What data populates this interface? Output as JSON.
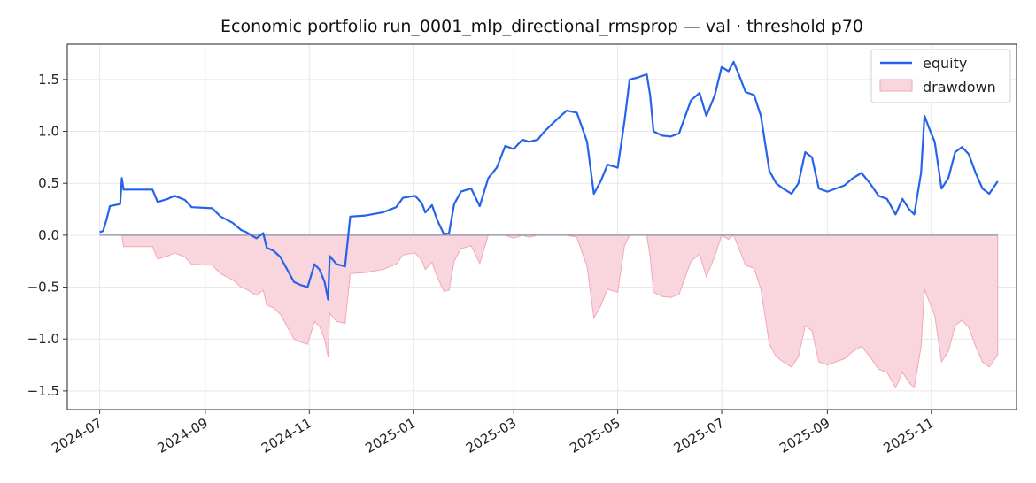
{
  "chart_data": {
    "type": "line",
    "title": "Economic portfolio run_0001_mlp_directional_rmsprop — val · threshold p70",
    "xlabel": "",
    "ylabel": "",
    "xlim": [
      "2024-06-12",
      "2025-12-21"
    ],
    "ylim": [
      -1.68,
      1.84
    ],
    "grid": true,
    "legend_position": "top-right",
    "x_ticks": [
      "2024-07",
      "2024-09",
      "2024-11",
      "2025-01",
      "2025-03",
      "2025-05",
      "2025-07",
      "2025-09",
      "2025-11"
    ],
    "y_ticks": [
      -1.5,
      -1.0,
      -0.5,
      0.0,
      0.5,
      1.0,
      1.5
    ],
    "y_tick_labels": [
      "−1.5",
      "−1.0",
      "−0.5",
      "0.0",
      "0.5",
      "1.0",
      "1.5"
    ],
    "colors": {
      "equity": "#2563eb",
      "drawdown_fill": "#f9d6de",
      "drawdown_edge": "#f2a6b8",
      "zero_line": "#8a8fa8"
    },
    "series": [
      {
        "name": "equity",
        "kind": "line",
        "points": [
          [
            "2024-07-01",
            0.03
          ],
          [
            "2024-07-03",
            0.04
          ],
          [
            "2024-07-05",
            0.15
          ],
          [
            "2024-07-07",
            0.28
          ],
          [
            "2024-07-13",
            0.3
          ],
          [
            "2024-07-14",
            0.55
          ],
          [
            "2024-07-15",
            0.44
          ],
          [
            "2024-08-01",
            0.44
          ],
          [
            "2024-08-04",
            0.32
          ],
          [
            "2024-08-10",
            0.35
          ],
          [
            "2024-08-14",
            0.38
          ],
          [
            "2024-08-20",
            0.34
          ],
          [
            "2024-08-24",
            0.27
          ],
          [
            "2024-09-05",
            0.26
          ],
          [
            "2024-09-10",
            0.18
          ],
          [
            "2024-09-17",
            0.12
          ],
          [
            "2024-09-22",
            0.05
          ],
          [
            "2024-09-25",
            0.03
          ],
          [
            "2024-10-01",
            -0.03
          ],
          [
            "2024-10-05",
            0.02
          ],
          [
            "2024-10-07",
            -0.12
          ],
          [
            "2024-10-11",
            -0.15
          ],
          [
            "2024-10-15",
            -0.21
          ],
          [
            "2024-10-19",
            -0.33
          ],
          [
            "2024-10-23",
            -0.45
          ],
          [
            "2024-10-27",
            -0.48
          ],
          [
            "2024-10-31",
            -0.5
          ],
          [
            "2024-11-04",
            -0.28
          ],
          [
            "2024-11-07",
            -0.33
          ],
          [
            "2024-11-10",
            -0.45
          ],
          [
            "2024-11-12",
            -0.62
          ],
          [
            "2024-11-13",
            -0.2
          ],
          [
            "2024-11-17",
            -0.28
          ],
          [
            "2024-11-22",
            -0.3
          ],
          [
            "2024-11-25",
            0.18
          ],
          [
            "2024-12-04",
            0.19
          ],
          [
            "2024-12-14",
            0.22
          ],
          [
            "2024-12-22",
            0.27
          ],
          [
            "2024-12-26",
            0.36
          ],
          [
            "2025-01-02",
            0.38
          ],
          [
            "2025-01-06",
            0.31
          ],
          [
            "2025-01-08",
            0.22
          ],
          [
            "2025-01-12",
            0.29
          ],
          [
            "2025-01-15",
            0.15
          ],
          [
            "2025-01-19",
            0.01
          ],
          [
            "2025-01-22",
            0.02
          ],
          [
            "2025-01-25",
            0.3
          ],
          [
            "2025-01-29",
            0.42
          ],
          [
            "2025-02-04",
            0.45
          ],
          [
            "2025-02-09",
            0.28
          ],
          [
            "2025-02-14",
            0.55
          ],
          [
            "2025-02-19",
            0.65
          ],
          [
            "2025-02-24",
            0.86
          ],
          [
            "2025-03-01",
            0.83
          ],
          [
            "2025-03-06",
            0.92
          ],
          [
            "2025-03-10",
            0.9
          ],
          [
            "2025-03-15",
            0.92
          ],
          [
            "2025-03-19",
            1.0
          ],
          [
            "2025-03-24",
            1.08
          ],
          [
            "2025-03-28",
            1.14
          ],
          [
            "2025-04-01",
            1.2
          ],
          [
            "2025-04-07",
            1.18
          ],
          [
            "2025-04-13",
            0.9
          ],
          [
            "2025-04-17",
            0.4
          ],
          [
            "2025-04-21",
            0.52
          ],
          [
            "2025-04-25",
            0.68
          ],
          [
            "2025-05-01",
            0.65
          ],
          [
            "2025-05-05",
            1.1
          ],
          [
            "2025-05-08",
            1.5
          ],
          [
            "2025-05-13",
            1.52
          ],
          [
            "2025-05-18",
            1.55
          ],
          [
            "2025-05-20",
            1.35
          ],
          [
            "2025-05-22",
            1.0
          ],
          [
            "2025-05-27",
            0.96
          ],
          [
            "2025-06-01",
            0.95
          ],
          [
            "2025-06-06",
            0.98
          ],
          [
            "2025-06-09",
            1.12
          ],
          [
            "2025-06-13",
            1.3
          ],
          [
            "2025-06-18",
            1.37
          ],
          [
            "2025-06-22",
            1.15
          ],
          [
            "2025-06-27",
            1.35
          ],
          [
            "2025-07-01",
            1.62
          ],
          [
            "2025-07-05",
            1.58
          ],
          [
            "2025-07-08",
            1.67
          ],
          [
            "2025-07-11",
            1.55
          ],
          [
            "2025-07-15",
            1.38
          ],
          [
            "2025-07-20",
            1.35
          ],
          [
            "2025-07-24",
            1.15
          ],
          [
            "2025-07-29",
            0.62
          ],
          [
            "2025-08-02",
            0.5
          ],
          [
            "2025-08-06",
            0.45
          ],
          [
            "2025-08-11",
            0.4
          ],
          [
            "2025-08-15",
            0.5
          ],
          [
            "2025-08-19",
            0.8
          ],
          [
            "2025-08-23",
            0.75
          ],
          [
            "2025-08-27",
            0.45
          ],
          [
            "2025-09-01",
            0.42
          ],
          [
            "2025-09-06",
            0.45
          ],
          [
            "2025-09-11",
            0.48
          ],
          [
            "2025-09-16",
            0.55
          ],
          [
            "2025-09-21",
            0.6
          ],
          [
            "2025-09-26",
            0.5
          ],
          [
            "2025-10-01",
            0.38
          ],
          [
            "2025-10-06",
            0.35
          ],
          [
            "2025-10-11",
            0.2
          ],
          [
            "2025-10-15",
            0.35
          ],
          [
            "2025-10-19",
            0.25
          ],
          [
            "2025-10-22",
            0.2
          ],
          [
            "2025-10-26",
            0.6
          ],
          [
            "2025-10-28",
            1.15
          ],
          [
            "2025-10-31",
            1.02
          ],
          [
            "2025-11-03",
            0.9
          ],
          [
            "2025-11-07",
            0.45
          ],
          [
            "2025-11-11",
            0.55
          ],
          [
            "2025-11-15",
            0.8
          ],
          [
            "2025-11-19",
            0.85
          ],
          [
            "2025-11-23",
            0.78
          ],
          [
            "2025-11-27",
            0.6
          ],
          [
            "2025-12-01",
            0.45
          ],
          [
            "2025-12-05",
            0.4
          ],
          [
            "2025-12-10",
            0.52
          ]
        ]
      },
      {
        "name": "drawdown",
        "kind": "area",
        "points": [
          [
            "2024-07-01",
            0.0
          ],
          [
            "2024-07-14",
            0.0
          ],
          [
            "2024-07-15",
            -0.11
          ],
          [
            "2024-08-01",
            -0.11
          ],
          [
            "2024-08-04",
            -0.23
          ],
          [
            "2024-08-10",
            -0.2
          ],
          [
            "2024-08-14",
            -0.17
          ],
          [
            "2024-08-20",
            -0.21
          ],
          [
            "2024-08-24",
            -0.28
          ],
          [
            "2024-09-05",
            -0.29
          ],
          [
            "2024-09-10",
            -0.37
          ],
          [
            "2024-09-17",
            -0.43
          ],
          [
            "2024-09-22",
            -0.5
          ],
          [
            "2024-09-25",
            -0.52
          ],
          [
            "2024-10-01",
            -0.58
          ],
          [
            "2024-10-05",
            -0.53
          ],
          [
            "2024-10-07",
            -0.67
          ],
          [
            "2024-10-11",
            -0.7
          ],
          [
            "2024-10-15",
            -0.76
          ],
          [
            "2024-10-19",
            -0.88
          ],
          [
            "2024-10-23",
            -1.0
          ],
          [
            "2024-10-27",
            -1.03
          ],
          [
            "2024-10-31",
            -1.05
          ],
          [
            "2024-11-04",
            -0.83
          ],
          [
            "2024-11-07",
            -0.88
          ],
          [
            "2024-11-10",
            -1.0
          ],
          [
            "2024-11-12",
            -1.17
          ],
          [
            "2024-11-13",
            -0.75
          ],
          [
            "2024-11-17",
            -0.83
          ],
          [
            "2024-11-22",
            -0.85
          ],
          [
            "2024-11-25",
            -0.37
          ],
          [
            "2024-12-04",
            -0.36
          ],
          [
            "2024-12-14",
            -0.33
          ],
          [
            "2024-12-22",
            -0.28
          ],
          [
            "2024-12-26",
            -0.19
          ],
          [
            "2025-01-02",
            -0.17
          ],
          [
            "2025-01-06",
            -0.24
          ],
          [
            "2025-01-08",
            -0.33
          ],
          [
            "2025-01-12",
            -0.26
          ],
          [
            "2025-01-15",
            -0.4
          ],
          [
            "2025-01-19",
            -0.54
          ],
          [
            "2025-01-22",
            -0.53
          ],
          [
            "2025-01-25",
            -0.25
          ],
          [
            "2025-01-29",
            -0.13
          ],
          [
            "2025-02-04",
            -0.1
          ],
          [
            "2025-02-09",
            -0.27
          ],
          [
            "2025-02-14",
            0.0
          ],
          [
            "2025-02-19",
            0.0
          ],
          [
            "2025-02-24",
            0.0
          ],
          [
            "2025-03-01",
            -0.03
          ],
          [
            "2025-03-06",
            0.0
          ],
          [
            "2025-03-10",
            -0.02
          ],
          [
            "2025-03-15",
            0.0
          ],
          [
            "2025-03-19",
            0.0
          ],
          [
            "2025-03-24",
            0.0
          ],
          [
            "2025-03-28",
            0.0
          ],
          [
            "2025-04-01",
            0.0
          ],
          [
            "2025-04-07",
            -0.02
          ],
          [
            "2025-04-13",
            -0.3
          ],
          [
            "2025-04-17",
            -0.8
          ],
          [
            "2025-04-21",
            -0.68
          ],
          [
            "2025-04-25",
            -0.52
          ],
          [
            "2025-05-01",
            -0.55
          ],
          [
            "2025-05-05",
            -0.1
          ],
          [
            "2025-05-08",
            0.0
          ],
          [
            "2025-05-13",
            0.0
          ],
          [
            "2025-05-18",
            0.0
          ],
          [
            "2025-05-20",
            -0.2
          ],
          [
            "2025-05-22",
            -0.55
          ],
          [
            "2025-05-27",
            -0.59
          ],
          [
            "2025-06-01",
            -0.6
          ],
          [
            "2025-06-06",
            -0.57
          ],
          [
            "2025-06-09",
            -0.43
          ],
          [
            "2025-06-13",
            -0.25
          ],
          [
            "2025-06-18",
            -0.18
          ],
          [
            "2025-06-22",
            -0.4
          ],
          [
            "2025-06-27",
            -0.2
          ],
          [
            "2025-07-01",
            0.0
          ],
          [
            "2025-07-05",
            -0.04
          ],
          [
            "2025-07-08",
            0.0
          ],
          [
            "2025-07-11",
            -0.12
          ],
          [
            "2025-07-15",
            -0.29
          ],
          [
            "2025-07-20",
            -0.32
          ],
          [
            "2025-07-24",
            -0.52
          ],
          [
            "2025-07-29",
            -1.05
          ],
          [
            "2025-08-02",
            -1.17
          ],
          [
            "2025-08-06",
            -1.22
          ],
          [
            "2025-08-11",
            -1.27
          ],
          [
            "2025-08-15",
            -1.17
          ],
          [
            "2025-08-19",
            -0.87
          ],
          [
            "2025-08-23",
            -0.92
          ],
          [
            "2025-08-27",
            -1.22
          ],
          [
            "2025-09-01",
            -1.25
          ],
          [
            "2025-09-06",
            -1.22
          ],
          [
            "2025-09-11",
            -1.19
          ],
          [
            "2025-09-16",
            -1.12
          ],
          [
            "2025-09-21",
            -1.07
          ],
          [
            "2025-09-26",
            -1.17
          ],
          [
            "2025-10-01",
            -1.29
          ],
          [
            "2025-10-06",
            -1.32
          ],
          [
            "2025-10-11",
            -1.47
          ],
          [
            "2025-10-15",
            -1.32
          ],
          [
            "2025-10-19",
            -1.42
          ],
          [
            "2025-10-22",
            -1.47
          ],
          [
            "2025-10-26",
            -1.07
          ],
          [
            "2025-10-28",
            -0.52
          ],
          [
            "2025-10-31",
            -0.65
          ],
          [
            "2025-11-03",
            -0.77
          ],
          [
            "2025-11-07",
            -1.22
          ],
          [
            "2025-11-11",
            -1.12
          ],
          [
            "2025-11-15",
            -0.87
          ],
          [
            "2025-11-19",
            -0.82
          ],
          [
            "2025-11-23",
            -0.89
          ],
          [
            "2025-11-27",
            -1.07
          ],
          [
            "2025-12-01",
            -1.22
          ],
          [
            "2025-12-05",
            -1.27
          ],
          [
            "2025-12-10",
            -1.15
          ],
          [
            "2025-12-10",
            0.0
          ]
        ]
      }
    ]
  }
}
